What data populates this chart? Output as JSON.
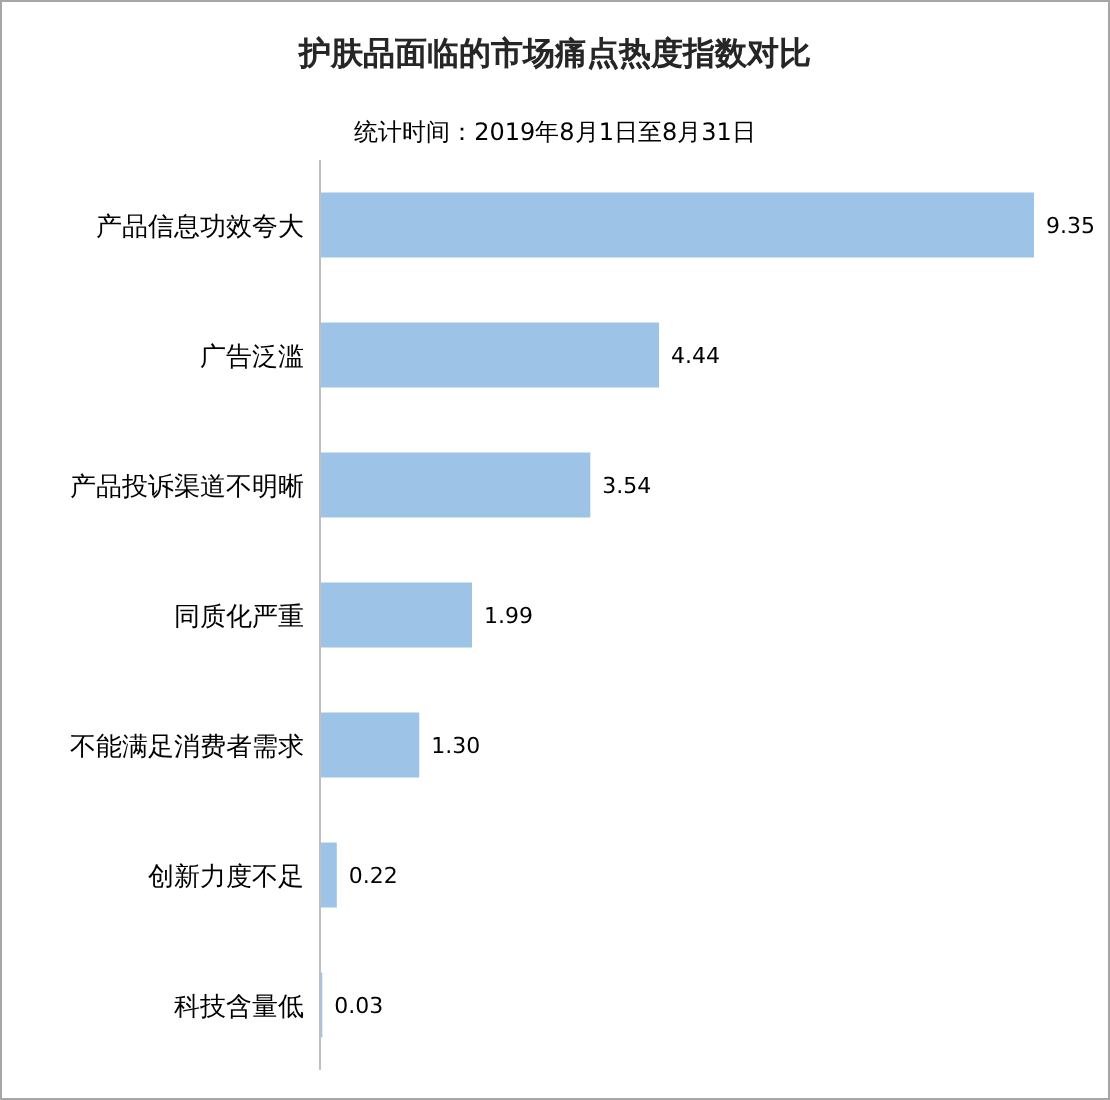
{
  "chart_data": {
    "type": "bar",
    "orientation": "horizontal",
    "title": "护肤品面临的市场痛点热度指数对比",
    "subtitle": "统计时间：2019年8月1日至8月31日",
    "categories": [
      "产品信息功效夸大",
      "广告泛滥",
      "产品投诉渠道不明晰",
      "同质化严重",
      "不能满足消费者需求",
      "创新力度不足",
      "科技含量低"
    ],
    "values": [
      9.35,
      4.44,
      3.54,
      1.99,
      1.3,
      0.22,
      0.03
    ],
    "value_labels": [
      "9.35",
      "4.44",
      "3.54",
      "1.99",
      "1.30",
      "0.22",
      "0.03"
    ],
    "color": "#9dc3e6"
  }
}
